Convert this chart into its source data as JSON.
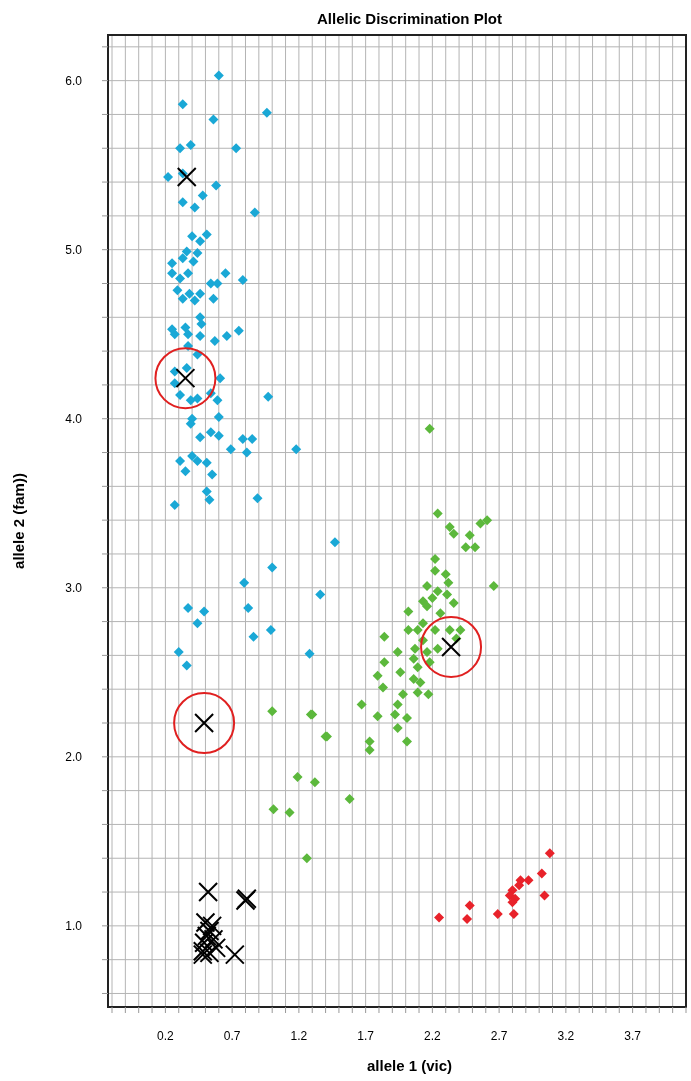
{
  "chart_data": {
    "type": "scatter",
    "title": "Allelic Discrimination Plot",
    "xlabel": "allele 1 (vic)",
    "ylabel": "allele 2 (fam))",
    "xlim": [
      -0.23,
      4.1
    ],
    "ylim": [
      0.52,
      6.27
    ],
    "grid": true,
    "xticks": [
      {
        "value": -0.2,
        "label": null
      },
      {
        "value": -0.1,
        "label": null
      },
      {
        "value": 0,
        "label": null
      },
      {
        "value": 0.1,
        "label": null
      },
      0.2,
      {
        "value": 0.3,
        "label": null
      },
      {
        "value": 0.4,
        "label": null
      },
      {
        "value": 0.5,
        "label": null
      },
      {
        "value": 0.6,
        "label": null
      },
      0.7,
      {
        "value": 0.8,
        "label": null
      },
      {
        "value": 0.9,
        "label": null
      },
      {
        "value": 1,
        "label": null
      },
      {
        "value": 1.1,
        "label": null
      },
      1.2,
      {
        "value": 1.3,
        "label": null
      },
      {
        "value": 1.4,
        "label": null
      },
      {
        "value": 1.5,
        "label": null
      },
      {
        "value": 1.6,
        "label": null
      },
      1.7,
      {
        "value": 1.8,
        "label": null
      },
      {
        "value": 1.9,
        "label": null
      },
      {
        "value": 2,
        "label": null
      },
      {
        "value": 2.1,
        "label": null
      },
      2.2,
      {
        "value": 2.3,
        "label": null
      },
      {
        "value": 2.4,
        "label": null
      },
      {
        "value": 2.5,
        "label": null
      },
      {
        "value": 2.6,
        "label": null
      },
      2.7,
      {
        "value": 2.8,
        "label": null
      },
      {
        "value": 2.9,
        "label": null
      },
      {
        "value": 3,
        "label": null
      },
      {
        "value": 3.1,
        "label": null
      },
      3.2,
      {
        "value": 3.3,
        "label": null
      },
      {
        "value": 3.4,
        "label": null
      },
      {
        "value": 3.5,
        "label": null
      },
      {
        "value": 3.6,
        "label": null
      },
      3.7,
      {
        "value": 3.8,
        "label": null
      },
      {
        "value": 3.9,
        "label": null
      },
      {
        "value": 4,
        "label": null
      },
      {
        "value": 4.1,
        "label": null
      }
    ],
    "yticks": [
      {
        "value": 0.6,
        "label": null
      },
      {
        "value": 0.8,
        "label": null
      },
      {
        "value": 1,
        "label": "1.0"
      },
      {
        "value": 1.2,
        "label": null
      },
      {
        "value": 1.4,
        "label": null
      },
      {
        "value": 1.6,
        "label": null
      },
      {
        "value": 1.8,
        "label": null
      },
      {
        "value": 2,
        "label": "2.0"
      },
      {
        "value": 2.2,
        "label": null
      },
      {
        "value": 2.4,
        "label": null
      },
      {
        "value": 2.6,
        "label": null
      },
      {
        "value": 2.8,
        "label": null
      },
      {
        "value": 3,
        "label": "3.0"
      },
      {
        "value": 3.2,
        "label": null
      },
      {
        "value": 3.4,
        "label": null
      },
      {
        "value": 3.6,
        "label": null
      },
      {
        "value": 3.8,
        "label": null
      },
      {
        "value": 4,
        "label": "4.0"
      },
      {
        "value": 4.2,
        "label": null
      },
      {
        "value": 4.4,
        "label": null
      },
      {
        "value": 4.6,
        "label": null
      },
      {
        "value": 4.8,
        "label": null
      },
      {
        "value": 5,
        "label": "5.0"
      },
      {
        "value": 5.2,
        "label": null
      },
      {
        "value": 5.4,
        "label": null
      },
      {
        "value": 5.6,
        "label": null
      },
      {
        "value": 5.8,
        "label": null
      },
      {
        "value": 6,
        "label": "6.0"
      },
      {
        "value": 6.2,
        "label": null
      }
    ],
    "series": [
      {
        "color": "#1aa8d6",
        "marker": "diamond",
        "x": [
          0.6,
          0.33,
          0.96,
          0.56,
          0.31,
          0.39,
          0.73,
          0.22,
          0.33,
          0.58,
          0.33,
          0.48,
          0.42,
          0.87,
          0.4,
          0.46,
          0.51,
          0.36,
          0.44,
          0.33,
          0.25,
          0.41,
          0.25,
          0.37,
          0.65,
          0.31,
          0.78,
          0.54,
          0.59,
          0.29,
          0.38,
          0.33,
          0.46,
          0.42,
          0.56,
          0.46,
          0.47,
          0.25,
          0.35,
          0.27,
          0.37,
          0.46,
          0.57,
          0.66,
          0.75,
          0.37,
          0.44,
          0.27,
          0.36,
          0.27,
          0.61,
          0.31,
          0.39,
          0.44,
          0.54,
          0.59,
          0.97,
          0.6,
          0.4,
          0.39,
          0.46,
          0.54,
          0.6,
          0.78,
          0.85,
          0.69,
          0.81,
          1.18,
          0.31,
          0.4,
          0.44,
          0.51,
          0.35,
          0.55,
          0.51,
          0.53,
          0.89,
          0.27,
          1.47,
          1.0,
          0.79,
          1.36,
          0.37,
          0.49,
          0.44,
          0.82,
          0.86,
          0.99,
          1.28,
          0.3,
          0.36
        ],
        "values": [
          6.03,
          5.86,
          5.81,
          5.77,
          5.6,
          5.62,
          5.6,
          5.43,
          5.45,
          5.38,
          5.28,
          5.32,
          5.25,
          5.22,
          5.08,
          5.05,
          5.09,
          4.99,
          4.98,
          4.95,
          4.92,
          4.93,
          4.86,
          4.86,
          4.86,
          4.83,
          4.82,
          4.8,
          4.8,
          4.76,
          4.74,
          4.71,
          4.74,
          4.7,
          4.71,
          4.6,
          4.56,
          4.53,
          4.54,
          4.5,
          4.5,
          4.49,
          4.46,
          4.49,
          4.52,
          4.43,
          4.38,
          4.28,
          4.3,
          4.21,
          4.24,
          4.14,
          4.11,
          4.12,
          4.15,
          4.11,
          4.13,
          4.01,
          4.0,
          3.97,
          3.89,
          3.92,
          3.9,
          3.88,
          3.88,
          3.82,
          3.8,
          3.82,
          3.75,
          3.78,
          3.75,
          3.74,
          3.69,
          3.67,
          3.57,
          3.52,
          3.53,
          3.49,
          3.27,
          3.12,
          3.03,
          2.96,
          2.88,
          2.86,
          2.79,
          2.88,
          2.71,
          2.75,
          2.61,
          2.62,
          2.54
        ]
      },
      {
        "color": "#5cb83c",
        "marker": "diamond",
        "x": [
          2.18,
          2.24,
          2.33,
          2.36,
          2.56,
          2.61,
          2.48,
          2.45,
          2.52,
          2.22,
          2.66,
          2.22,
          2.3,
          2.32,
          2.16,
          2.24,
          2.2,
          2.13,
          2.31,
          2.16,
          2.36,
          2.02,
          2.26,
          2.13,
          2.02,
          2.09,
          2.22,
          2.33,
          2.41,
          2.38,
          1.84,
          2.13,
          2.24,
          2.07,
          1.94,
          2.16,
          2.06,
          2.18,
          2.09,
          1.84,
          1.96,
          1.79,
          2.06,
          2.11,
          1.83,
          2.09,
          2.17,
          1.98,
          1.67,
          1.94,
          1.92,
          1.3,
          1.79,
          2.01,
          1.41,
          1.94,
          2.01,
          1.73,
          1.73,
          1.19,
          1.32,
          1.58,
          1.13,
          1.0,
          1.29,
          1.4,
          1.01,
          1.26
        ],
        "values": [
          3.94,
          3.44,
          3.36,
          3.32,
          3.38,
          3.4,
          3.31,
          3.24,
          3.24,
          3.17,
          3.01,
          3.1,
          3.08,
          3.03,
          3.01,
          2.98,
          2.94,
          2.92,
          2.96,
          2.89,
          2.91,
          2.86,
          2.85,
          2.79,
          2.75,
          2.75,
          2.75,
          2.75,
          2.75,
          2.7,
          2.71,
          2.69,
          2.64,
          2.64,
          2.62,
          2.62,
          2.58,
          2.56,
          2.53,
          2.56,
          2.5,
          2.48,
          2.46,
          2.44,
          2.41,
          2.38,
          2.37,
          2.37,
          2.31,
          2.31,
          2.25,
          2.25,
          2.24,
          2.23,
          2.12,
          2.17,
          2.09,
          2.09,
          2.04,
          1.88,
          1.85,
          1.75,
          1.67,
          2.27,
          2.25,
          2.12,
          1.69,
          1.4
        ]
      },
      {
        "color": "#e8222a",
        "marker": "diamond",
        "x": [
          3.08,
          3.02,
          2.92,
          2.86,
          2.85,
          2.8,
          2.78,
          2.82,
          2.8,
          3.04,
          2.81,
          2.69,
          2.48,
          2.46,
          2.25
        ],
        "values": [
          1.43,
          1.31,
          1.27,
          1.27,
          1.24,
          1.21,
          1.18,
          1.16,
          1.14,
          1.18,
          1.07,
          1.07,
          1.12,
          1.04,
          1.05
        ]
      },
      {
        "color": "#000000",
        "marker": "cross",
        "x": [
          0.36,
          0.52,
          0.8,
          0.81,
          0.5,
          0.55,
          0.53,
          0.51,
          0.56,
          0.49,
          0.58,
          0.48,
          0.53,
          0.72,
          0.48
        ],
        "values": [
          5.43,
          1.2,
          1.15,
          1.16,
          1.02,
          1.0,
          0.97,
          0.94,
          0.92,
          0.9,
          0.87,
          0.85,
          0.84,
          0.83,
          0.83
        ]
      },
      {
        "color": "#000000",
        "marker": "cross",
        "x": [
          0.35,
          0.49,
          2.34
        ],
        "values": [
          4.24,
          2.2,
          2.65
        ]
      }
    ]
  }
}
